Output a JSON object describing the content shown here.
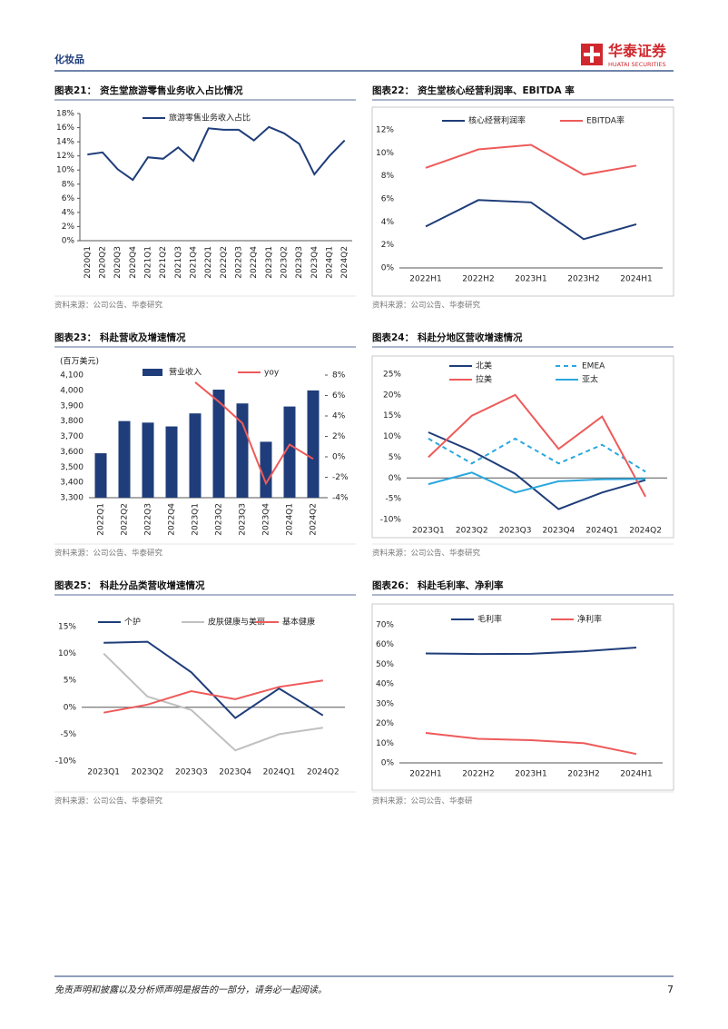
{
  "header": {
    "section": "化妆品",
    "brand": "华泰证券",
    "brand_en": "HUATAI SECURITIES"
  },
  "footer": {
    "disclaimer": "免责声明和披露以及分析师声明是报告的一部分，请务必一起阅读。",
    "page": "7"
  },
  "chart_data": [
    {
      "type": "line",
      "label": "图表21：",
      "title": "资生堂旅游零售业务收入占比情况",
      "source": "资料来源：公司公告、华泰研究",
      "categories": [
        "2020Q1",
        "2020Q2",
        "2020Q3",
        "2020Q4",
        "2021Q1",
        "2021Q2",
        "2021Q3",
        "2021Q4",
        "2022Q1",
        "2022Q2",
        "2022Q3",
        "2022Q4",
        "2023Q1",
        "2023Q2",
        "2023Q3",
        "2023Q4",
        "2024Q1",
        "2024Q2"
      ],
      "series": [
        {
          "name": "旅游零售业务收入占比",
          "color": "#1f3d7a",
          "values": [
            12.2,
            12.5,
            10.1,
            8.6,
            11.8,
            11.6,
            13.2,
            11.3,
            15.9,
            15.7,
            15.7,
            14.2,
            16.1,
            15.2,
            13.7,
            9.4,
            12.0,
            14.2
          ]
        }
      ],
      "ylim": [
        0,
        18
      ],
      "yticks": [
        {
          "value": 0,
          "label": "0%"
        },
        {
          "value": 2,
          "label": "2%"
        },
        {
          "value": 4,
          "label": "4%"
        },
        {
          "value": 6,
          "label": "6%"
        },
        {
          "value": 8,
          "label": "8%"
        },
        {
          "value": 10,
          "label": "10%"
        },
        {
          "value": 12,
          "label": "12%"
        },
        {
          "value": 14,
          "label": "14%"
        },
        {
          "value": 16,
          "label": "16%"
        },
        {
          "value": 18,
          "label": "18%"
        }
      ]
    },
    {
      "type": "line",
      "label": "图表22：",
      "title": "资生堂核心经营利润率、EBITDA 率",
      "source": "资料来源：公司公告、华泰研究",
      "categories": [
        "2022H1",
        "2022H2",
        "2023H1",
        "2023H2",
        "2024H1"
      ],
      "series": [
        {
          "name": "核心经营利润率",
          "color": "#1f3d7a",
          "values": [
            3.6,
            5.9,
            5.7,
            2.5,
            3.8
          ]
        },
        {
          "name": "EBITDA率",
          "color": "#ee5a5a",
          "values": [
            8.7,
            10.3,
            10.7,
            8.1,
            8.9
          ]
        }
      ],
      "ylim": [
        0,
        12
      ],
      "yticks": [
        {
          "value": 0,
          "label": "0%"
        },
        {
          "value": 2,
          "label": "2%"
        },
        {
          "value": 4,
          "label": "4%"
        },
        {
          "value": 6,
          "label": "6%"
        },
        {
          "value": 8,
          "label": "8%"
        },
        {
          "value": 10,
          "label": "10%"
        },
        {
          "value": 12,
          "label": "12%"
        }
      ]
    },
    {
      "type": "bar",
      "label": "图表23：",
      "title": "科赴营收及增速情况",
      "source": "资料来源：公司公告、华泰研究",
      "y_label": "(百万美元)",
      "categories": [
        "2022Q1",
        "2022Q2",
        "2022Q3",
        "2022Q4",
        "2023Q1",
        "2023Q2",
        "2023Q3",
        "2023Q4",
        "2024Q1",
        "2024Q2"
      ],
      "series": [
        {
          "name": "营业收入",
          "type": "bar",
          "color": "#1f3d7a",
          "values": [
            3590,
            3800,
            3790,
            3765,
            3850,
            4005,
            3915,
            3665,
            3895,
            4000
          ]
        },
        {
          "name": "yoy",
          "type": "line",
          "axis": "y2",
          "color": "#ee5a5a",
          "values": [
            null,
            null,
            null,
            null,
            7.3,
            5.4,
            3.3,
            -2.6,
            1.2,
            -0.2
          ]
        }
      ],
      "ylim": [
        3300,
        4100
      ],
      "yticks": [
        {
          "value": 3300,
          "label": "3,300"
        },
        {
          "value": 3400,
          "label": "3,400"
        },
        {
          "value": 3500,
          "label": "3,500"
        },
        {
          "value": 3600,
          "label": "3,600"
        },
        {
          "value": 3700,
          "label": "3,700"
        },
        {
          "value": 3800,
          "label": "3,800"
        },
        {
          "value": 3900,
          "label": "3,900"
        },
        {
          "value": 4000,
          "label": "4,000"
        },
        {
          "value": 4100,
          "label": "4,100"
        }
      ],
      "y2lim": [
        -4,
        8
      ],
      "y2ticks": [
        {
          "value": -4,
          "label": "-4%"
        },
        {
          "value": -2,
          "label": "-2%"
        },
        {
          "value": 0,
          "label": "0%"
        },
        {
          "value": 2,
          "label": "2%"
        },
        {
          "value": 4,
          "label": "4%"
        },
        {
          "value": 6,
          "label": "6%"
        },
        {
          "value": 8,
          "label": "8%"
        }
      ]
    },
    {
      "type": "line",
      "label": "图表24：",
      "title": "科赴分地区营收增速情况",
      "source": "资料来源：公司公告、华泰研究",
      "categories": [
        "2023Q1",
        "2023Q2",
        "2023Q3",
        "2023Q4",
        "2024Q1",
        "2024Q2"
      ],
      "series": [
        {
          "name": "北美",
          "color": "#1f3d7a",
          "values": [
            11,
            6.5,
            1,
            -7.5,
            -3.5,
            -0.5
          ]
        },
        {
          "name": "EMEA",
          "color": "#2aa8de",
          "dashed": true,
          "values": [
            9.5,
            3.5,
            9.5,
            3.5,
            8,
            1.5
          ]
        },
        {
          "name": "拉美",
          "color": "#ee5a5a",
          "values": [
            5,
            15,
            20,
            7,
            14.8,
            -4.5
          ]
        },
        {
          "name": "亚太",
          "color": "#2aa8de",
          "values": [
            -1.5,
            1.3,
            -3.5,
            -0.8,
            -0.3,
            -0.2
          ]
        }
      ],
      "ylim": [
        -10,
        25
      ],
      "yticks": [
        {
          "value": -10,
          "label": "-10%"
        },
        {
          "value": -5,
          "label": "-5%"
        },
        {
          "value": 0,
          "label": "0%"
        },
        {
          "value": 5,
          "label": "5%"
        },
        {
          "value": 10,
          "label": "10%"
        },
        {
          "value": 15,
          "label": "15%"
        },
        {
          "value": 20,
          "label": "20%"
        },
        {
          "value": 25,
          "label": "25%"
        }
      ]
    },
    {
      "type": "line",
      "label": "图表25：",
      "title": "科赴分品类营收增速情况",
      "source": "资料来源：公司公告、华泰研究",
      "categories": [
        "2023Q1",
        "2023Q2",
        "2023Q3",
        "2023Q4",
        "2024Q1",
        "2024Q2"
      ],
      "series": [
        {
          "name": "个护",
          "color": "#1f3d7a",
          "values": [
            12,
            12.2,
            6.5,
            -2,
            3.5,
            -1.5
          ]
        },
        {
          "name": "皮肤健康与美丽",
          "color": "#c0c0c0",
          "values": [
            10,
            2,
            -0.5,
            -8,
            -5,
            -3.8
          ]
        },
        {
          "name": "基本健康",
          "color": "#ee5a5a",
          "values": [
            -1,
            0.5,
            3,
            1.5,
            3.8,
            5
          ]
        }
      ],
      "ylim": [
        -10,
        15
      ],
      "yticks": [
        {
          "value": -10,
          "label": "-10%"
        },
        {
          "value": -5,
          "label": "-5%"
        },
        {
          "value": 0,
          "label": "0%"
        },
        {
          "value": 5,
          "label": "5%"
        },
        {
          "value": 10,
          "label": "10%"
        },
        {
          "value": 15,
          "label": "15%"
        }
      ]
    },
    {
      "type": "line",
      "label": "图表26：",
      "title": "科赴毛利率、净利率",
      "source": "资料来源：公司公告、华泰研",
      "categories": [
        "2022H1",
        "2022H2",
        "2023H1",
        "2023H2",
        "2024H1"
      ],
      "series": [
        {
          "name": "毛利率",
          "color": "#1f3d7a",
          "values": [
            55.5,
            55.2,
            55.3,
            56.6,
            58.5
          ]
        },
        {
          "name": "净利率",
          "color": "#ee5a5a",
          "values": [
            15.2,
            12.2,
            11.5,
            10,
            4.5
          ]
        }
      ],
      "ylim": [
        0,
        70
      ],
      "yticks": [
        {
          "value": 0,
          "label": "0%"
        },
        {
          "value": 10,
          "label": "10%"
        },
        {
          "value": 20,
          "label": "20%"
        },
        {
          "value": 30,
          "label": "30%"
        },
        {
          "value": 40,
          "label": "40%"
        },
        {
          "value": 50,
          "label": "50%"
        },
        {
          "value": 60,
          "label": "60%"
        },
        {
          "value": 70,
          "label": "70%"
        }
      ]
    }
  ]
}
